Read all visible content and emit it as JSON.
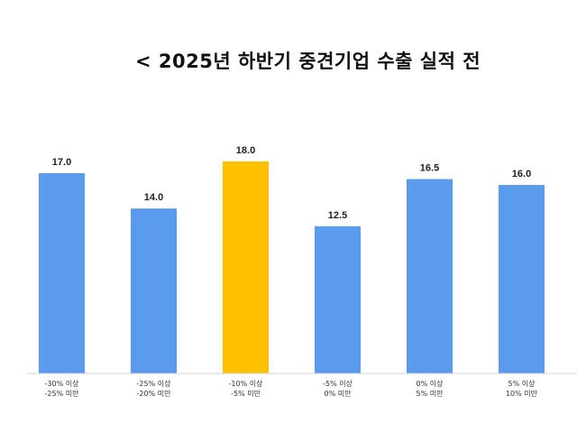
{
  "title": "< 2025년 하반기 중견기업 수출 실적 전",
  "chart_data": {
    "type": "bar",
    "title": "< 2025년 하반기 중견기업 수출 실적 전",
    "categories": [
      [
        "-30% 이상",
        "-25% 미만"
      ],
      [
        "-25% 이상",
        "-20% 미만"
      ],
      [
        "-10% 이상",
        "-5% 미만"
      ],
      [
        "-5% 이상",
        "0% 미만"
      ],
      [
        "0% 이상",
        "5% 미만"
      ],
      [
        "5% 이상",
        "10% 미만"
      ]
    ],
    "values": [
      17.0,
      14.0,
      18.0,
      12.5,
      16.5,
      16.0
    ],
    "value_labels": [
      "17.0",
      "14.0",
      "18.0",
      "12.5",
      "16.5",
      "16.0"
    ],
    "highlight_index": 2,
    "colors": {
      "default": "#5B9BEE",
      "highlight": "#FFC000"
    },
    "ylim": [
      0,
      20
    ],
    "grid": false,
    "legend": "none"
  }
}
